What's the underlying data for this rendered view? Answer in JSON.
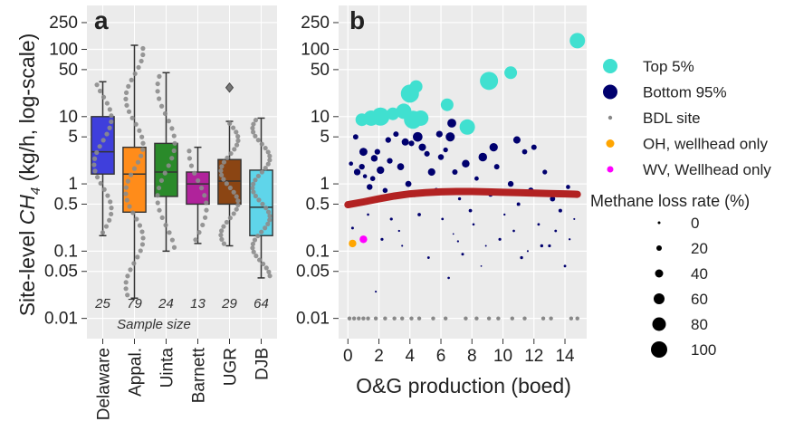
{
  "chart_data": [
    {
      "panel": "a",
      "type": "box",
      "ylabel": "Site-level CH4 (kg/h, log-scale)",
      "ylabel_prefix": "Site-level ",
      "ylabel_main": "CH",
      "ylabel_sub": "4",
      "ylabel_suffix": " (kg/h, log-scale)",
      "yscale": "log",
      "ylim": [
        0.005,
        450
      ],
      "yticks": [
        0.01,
        0.05,
        0.1,
        0.5,
        1,
        5,
        10,
        50,
        100,
        250
      ],
      "ytick_labels": [
        "0.01",
        "0.05",
        "0.1",
        "0.5",
        "1",
        "5",
        "10",
        "50",
        "100",
        "250"
      ],
      "categories": [
        "Delaware",
        "Appal.",
        "Uinta",
        "Barnett",
        "UGR",
        "DJB"
      ],
      "colors": [
        "#3f3fdc",
        "#ff8c1a",
        "#2a8a2a",
        "#b0239b",
        "#8b4513",
        "#5fd5ea"
      ],
      "sample_size": [
        25,
        79,
        24,
        13,
        29,
        64
      ],
      "sample_size_label": "Sample size",
      "boxes": [
        {
          "q1": 1.4,
          "median": 3.0,
          "q3": 10.0,
          "low": 0.17,
          "high": 33,
          "outliers": []
        },
        {
          "q1": 0.38,
          "median": 1.4,
          "q3": 3.5,
          "low": 0.02,
          "high": 115,
          "outliers": []
        },
        {
          "q1": 0.65,
          "median": 1.5,
          "q3": 4.0,
          "low": 0.1,
          "high": 45,
          "outliers": []
        },
        {
          "q1": 0.5,
          "median": 1.0,
          "q3": 1.5,
          "low": 0.13,
          "high": 3.5,
          "outliers": []
        },
        {
          "q1": 0.5,
          "median": 1.1,
          "q3": 2.3,
          "low": 0.12,
          "high": 8.5,
          "outliers": [
            27
          ]
        },
        {
          "q1": 0.17,
          "median": 0.45,
          "q3": 1.6,
          "low": 0.04,
          "high": 9.5,
          "outliers": []
        }
      ]
    },
    {
      "panel": "b",
      "type": "scatter",
      "xlabel": "O&G production (boed)",
      "xlim": [
        -0.6,
        15.4
      ],
      "xticks": [
        0,
        2,
        4,
        6,
        8,
        10,
        12,
        14
      ],
      "xtick_labels": [
        "0",
        "2",
        "4",
        "6",
        "8",
        "10",
        "12",
        "14"
      ],
      "yscale": "log",
      "ylim": [
        0.005,
        450
      ],
      "yticks": [
        0.01,
        0.05,
        0.1,
        0.5,
        1,
        5,
        10,
        50,
        100,
        250
      ],
      "ytick_labels": [
        "0.01",
        "0.05",
        "0.1",
        "0.5",
        "1",
        "5",
        "10",
        "50",
        "100",
        "250"
      ],
      "series": [
        {
          "name": "Top 5%",
          "color": "#40e0d0",
          "points": [
            [
              0.9,
              9
            ],
            [
              1.5,
              9.5
            ],
            [
              2.1,
              10
            ],
            [
              2.9,
              11
            ],
            [
              3.6,
              12
            ],
            [
              4.0,
              22
            ],
            [
              4.4,
              28
            ],
            [
              4.7,
              9.5
            ],
            [
              4.2,
              9
            ],
            [
              6.4,
              15
            ],
            [
              7.7,
              7
            ],
            [
              9.1,
              34
            ],
            [
              10.5,
              45
            ],
            [
              14.8,
              135
            ]
          ]
        },
        {
          "name": "Bottom 95%",
          "color": "#00006e",
          "points": [
            [
              0.2,
              2.0
            ],
            [
              0.6,
              1.5
            ],
            [
              0.9,
              1.8
            ],
            [
              1.1,
              1.3
            ],
            [
              1.4,
              0.9
            ],
            [
              1.7,
              2.4
            ],
            [
              1.9,
              3.0
            ],
            [
              2.1,
              1.6
            ],
            [
              2.4,
              0.8
            ],
            [
              2.7,
              2.2
            ],
            [
              3.1,
              5.5
            ],
            [
              3.4,
              1.8
            ],
            [
              3.7,
              4.2
            ],
            [
              4.1,
              4.0
            ],
            [
              4.5,
              5.0
            ],
            [
              4.8,
              3.5
            ],
            [
              5.1,
              2.8
            ],
            [
              5.4,
              1.5
            ],
            [
              5.7,
              0.8
            ],
            [
              6.0,
              2.5
            ],
            [
              6.3,
              3.2
            ],
            [
              6.6,
              5.0
            ],
            [
              6.9,
              1.5
            ],
            [
              7.2,
              0.6
            ],
            [
              7.6,
              2.0
            ],
            [
              7.9,
              0.4
            ],
            [
              8.3,
              1.2
            ],
            [
              8.7,
              2.5
            ],
            [
              9.2,
              0.7
            ],
            [
              9.6,
              1.8
            ],
            [
              10.1,
              0.35
            ],
            [
              10.5,
              1.0
            ],
            [
              11.0,
              0.5
            ],
            [
              11.4,
              3.0
            ],
            [
              11.8,
              0.8
            ],
            [
              12.3,
              0.25
            ],
            [
              12.7,
              1.5
            ],
            [
              13.2,
              0.6
            ],
            [
              13.7,
              0.4
            ],
            [
              14.2,
              0.9
            ],
            [
              14.6,
              0.3
            ],
            [
              0.3,
              0.22
            ],
            [
              0.7,
              0.5
            ],
            [
              1.3,
              0.35
            ],
            [
              2.2,
              0.15
            ],
            [
              2.8,
              0.3
            ],
            [
              3.5,
              0.12
            ],
            [
              4.3,
              0.7
            ],
            [
              5.2,
              0.08
            ],
            [
              6.1,
              0.3
            ],
            [
              6.8,
              0.18
            ],
            [
              7.4,
              0.09
            ],
            [
              8.1,
              0.25
            ],
            [
              8.9,
              0.12
            ],
            [
              9.8,
              0.15
            ],
            [
              10.7,
              0.2
            ],
            [
              11.6,
              0.1
            ],
            [
              12.5,
              0.12
            ],
            [
              13.4,
              0.2
            ],
            [
              14.3,
              0.15
            ],
            [
              0.5,
              5.0
            ],
            [
              1.0,
              3.0
            ],
            [
              1.6,
              1.2
            ],
            [
              2.6,
              4.5
            ],
            [
              3.9,
              1.0
            ],
            [
              6.7,
              8.0
            ],
            [
              5.9,
              5.5
            ],
            [
              2.3,
              0.6
            ],
            [
              4.6,
              0.35
            ],
            [
              7.1,
              0.14
            ],
            [
              8.6,
              0.06
            ],
            [
              9.4,
              3.5
            ],
            [
              10.9,
              4.5
            ],
            [
              12.0,
              3.5
            ],
            [
              13.0,
              0.12
            ],
            [
              6.5,
              0.04
            ],
            [
              1.8,
              0.025
            ],
            [
              11.2,
              0.08
            ],
            [
              14.0,
              0.06
            ],
            [
              3.3,
              0.2
            ]
          ]
        },
        {
          "name": "BDL site",
          "color": "#888888",
          "points": [
            [
              0.1,
              0.01
            ],
            [
              0.4,
              0.01
            ],
            [
              0.7,
              0.01
            ],
            [
              1.0,
              0.01
            ],
            [
              1.3,
              0.01
            ],
            [
              1.8,
              0.01
            ],
            [
              2.4,
              0.01
            ],
            [
              3.0,
              0.01
            ],
            [
              3.5,
              0.01
            ],
            [
              4.1,
              0.01
            ],
            [
              4.6,
              0.01
            ],
            [
              5.5,
              0.01
            ],
            [
              6.3,
              0.01
            ],
            [
              7.6,
              0.01
            ],
            [
              8.3,
              0.01
            ],
            [
              9.1,
              0.01
            ],
            [
              9.7,
              0.01
            ],
            [
              10.6,
              0.01
            ],
            [
              11.4,
              0.01
            ],
            [
              12.6,
              0.01
            ],
            [
              13.1,
              0.01
            ],
            [
              14.4,
              0.01
            ],
            [
              14.8,
              0.01
            ]
          ]
        },
        {
          "name": "OH, wellhead only",
          "color": "#ffa500",
          "points": [
            [
              0.3,
              0.13
            ]
          ]
        },
        {
          "name": "WV, Wellhead only",
          "color": "#ff00ff",
          "points": [
            [
              1.0,
              0.15
            ]
          ]
        }
      ],
      "trend_line": {
        "color": "#b22222",
        "x": [
          0,
          1,
          2,
          3,
          4,
          5,
          6,
          7,
          8,
          9,
          10,
          11,
          12,
          13,
          14,
          14.8
        ],
        "y": [
          0.49,
          0.54,
          0.6,
          0.66,
          0.71,
          0.74,
          0.76,
          0.77,
          0.77,
          0.76,
          0.75,
          0.74,
          0.73,
          0.72,
          0.71,
          0.7
        ]
      },
      "size_legend": {
        "title": "Methane loss rate (%)",
        "values": [
          0,
          20,
          40,
          60,
          80,
          100
        ],
        "labels": [
          "0",
          "20",
          "40",
          "60",
          "80",
          "100"
        ]
      },
      "legend_position": "right"
    }
  ]
}
